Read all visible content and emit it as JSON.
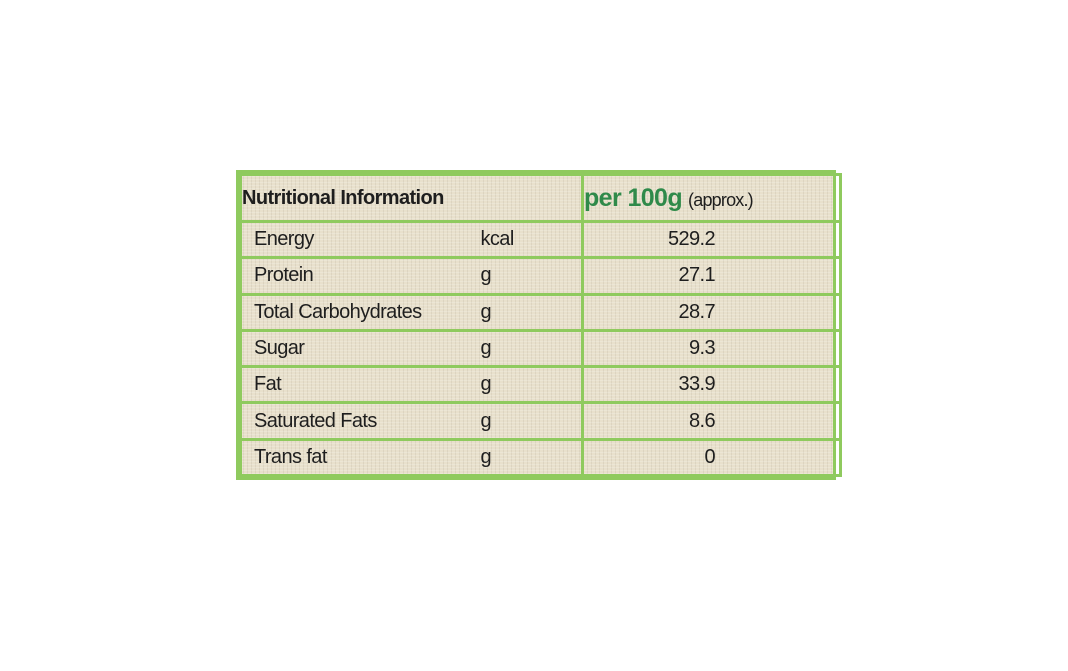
{
  "table": {
    "header": {
      "title": "Nutritional Information",
      "per": "per 100g",
      "approx": "(approx.)"
    },
    "rows": [
      {
        "name": "Energy",
        "unit": "kcal",
        "value": "529.2"
      },
      {
        "name": "Protein",
        "unit": "g",
        "value": "27.1"
      },
      {
        "name": "Total Carbohydrates",
        "unit": "g",
        "value": "28.7"
      },
      {
        "name": "Sugar",
        "unit": "g",
        "value": "9.3"
      },
      {
        "name": "Fat",
        "unit": "g",
        "value": "33.9"
      },
      {
        "name": "Saturated Fats",
        "unit": "g",
        "value": "8.6"
      },
      {
        "name": "Trans fat",
        "unit": "g",
        "value": "0"
      }
    ]
  },
  "colors": {
    "heading_green": "#2f8a4a",
    "border_green": "#8fca5e",
    "panel_beige": "#e8e0cc",
    "text": "#1e1e1e"
  }
}
